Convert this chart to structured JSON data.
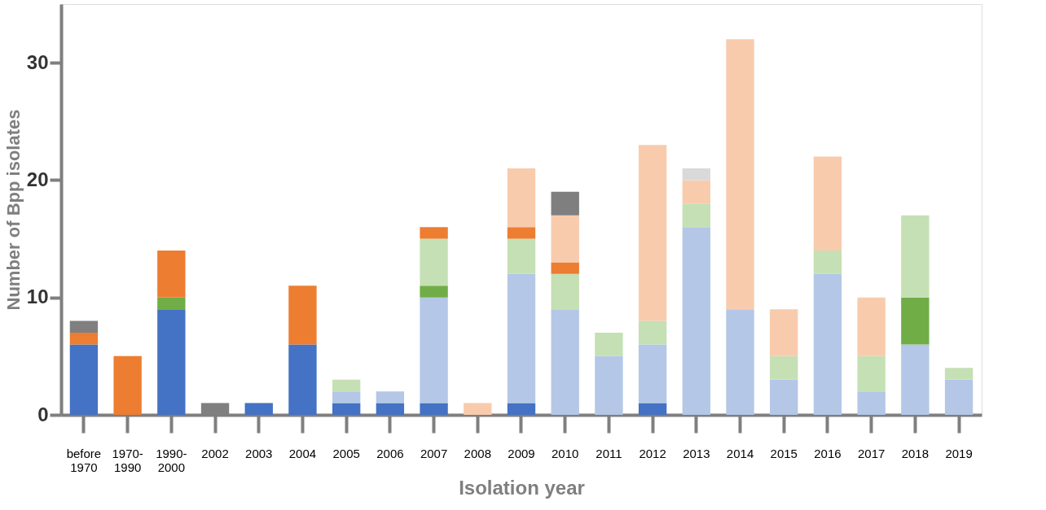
{
  "chart_data": {
    "type": "bar",
    "stacked": true,
    "xlabel": "Isolation year",
    "ylabel": "Number of Bpp isolates",
    "legend": false,
    "grid": false,
    "categories": [
      "before 1970",
      "1970-1990",
      "1990-2000",
      "2002",
      "2003",
      "2004",
      "2005",
      "2006",
      "2007",
      "2008",
      "2009",
      "2010",
      "2011",
      "2012",
      "2013",
      "2014",
      "2015",
      "2016",
      "2017",
      "2018",
      "2019"
    ],
    "ylim": [
      0,
      35
    ],
    "yticks": [
      0,
      10,
      20,
      30
    ],
    "series": [
      {
        "color": "#4472c4",
        "values": [
          6,
          null,
          9,
          null,
          1,
          6,
          1,
          1,
          1,
          null,
          1,
          null,
          null,
          1,
          null,
          null,
          null,
          null,
          null,
          null,
          null
        ]
      },
      {
        "color": "#b4c7e7",
        "values": [
          null,
          null,
          null,
          null,
          null,
          null,
          1,
          1,
          9,
          null,
          11,
          9,
          5,
          5,
          16,
          9,
          3,
          12,
          2,
          6,
          3
        ]
      },
      {
        "color": "#70ad47",
        "values": [
          null,
          null,
          1,
          null,
          null,
          null,
          null,
          null,
          1,
          null,
          null,
          null,
          null,
          null,
          null,
          null,
          null,
          null,
          null,
          4,
          null
        ]
      },
      {
        "color": "#c5e0b4",
        "values": [
          null,
          null,
          null,
          null,
          null,
          null,
          1,
          null,
          4,
          null,
          3,
          3,
          2,
          2,
          2,
          null,
          2,
          2,
          3,
          7,
          1
        ]
      },
      {
        "color": "#ed7d31",
        "values": [
          1,
          5,
          4,
          null,
          null,
          5,
          null,
          null,
          1,
          null,
          1,
          1,
          null,
          null,
          null,
          null,
          null,
          null,
          null,
          null,
          null
        ]
      },
      {
        "color": "#f8cbad",
        "values": [
          null,
          null,
          null,
          null,
          null,
          null,
          null,
          null,
          null,
          1,
          5,
          4,
          null,
          15,
          2,
          23,
          4,
          8,
          5,
          null,
          null
        ]
      },
      {
        "color": "#7f7f7f",
        "values": [
          1,
          null,
          null,
          1,
          null,
          null,
          null,
          null,
          null,
          null,
          null,
          2,
          null,
          null,
          null,
          null,
          null,
          null,
          null,
          null,
          null
        ]
      },
      {
        "color": "#d9d9d9",
        "values": [
          null,
          null,
          null,
          null,
          null,
          null,
          null,
          null,
          null,
          null,
          null,
          null,
          null,
          null,
          1,
          null,
          null,
          null,
          null,
          null,
          null
        ]
      }
    ]
  }
}
